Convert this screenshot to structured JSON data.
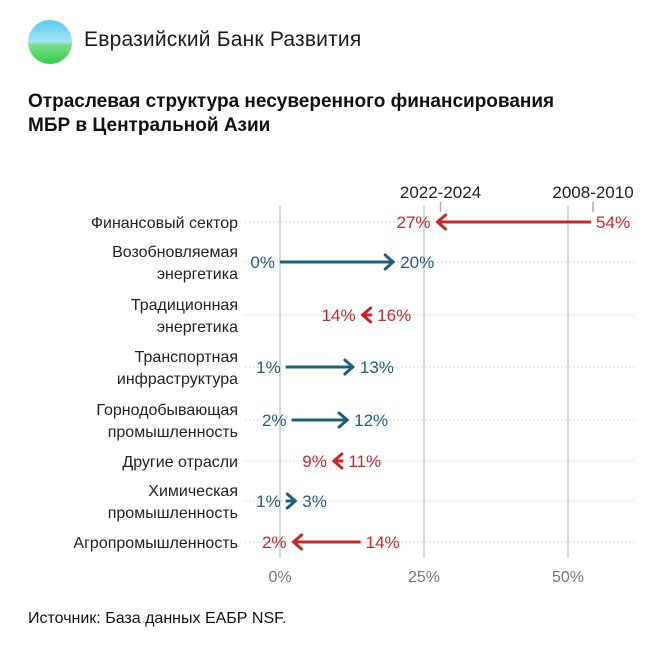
{
  "brand": {
    "name": "Евразийский Банк Развития"
  },
  "source": "Источник: База данных ЕАБР NSF.",
  "colors": {
    "decrease": "#c8262a",
    "increase": "#1e5f78",
    "grid": "#cccccc",
    "text": "#222222"
  },
  "chart_data": {
    "type": "arrow",
    "title": "Отраслевая структура несуверенного финансирования МБР в Центральной Азии",
    "title_lines": [
      "Отраслевая структура несуверенного финансирования",
      "МБР в Центральной Азии"
    ],
    "legend": {
      "start": "2008-2010",
      "end": "2022-2024"
    },
    "xlim": [
      0,
      60
    ],
    "xticks": [
      0,
      25,
      50
    ],
    "xtick_labels": [
      "0%",
      "25%",
      "50%"
    ],
    "categories": [
      {
        "label": [
          "Финансовый сектор"
        ],
        "from": 54,
        "to": 27
      },
      {
        "label": [
          "Возобновляемая",
          "энергетика"
        ],
        "from": 0,
        "to": 20
      },
      {
        "label": [
          "Традиционная",
          "энергетика"
        ],
        "from": 16,
        "to": 14
      },
      {
        "label": [
          "Транспортная",
          "инфраструктура"
        ],
        "from": 1,
        "to": 13
      },
      {
        "label": [
          "Горнодобывающая",
          "промышленность"
        ],
        "from": 2,
        "to": 12
      },
      {
        "label": [
          "Другие отрасли"
        ],
        "from": 11,
        "to": 9
      },
      {
        "label": [
          "Химическая",
          "промышленность"
        ],
        "from": 1,
        "to": 3
      },
      {
        "label": [
          "Агропромышленность"
        ],
        "from": 14,
        "to": 2
      }
    ]
  }
}
